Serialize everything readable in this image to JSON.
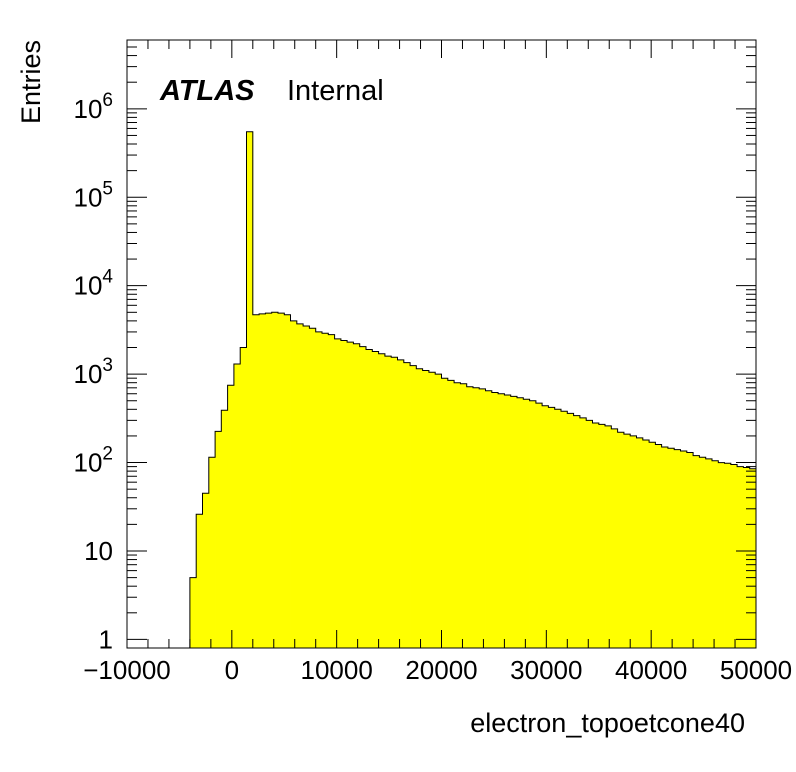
{
  "chart_data": {
    "type": "histogram",
    "xlabel": "electron_topoetcone40",
    "ylabel": "Entries",
    "label": {
      "experiment": "ATLAS",
      "status": "Internal"
    },
    "xlim": [
      -10000,
      50000
    ],
    "ylim": [
      0.8,
      6000000
    ],
    "yscale": "log",
    "x_ticks": [
      -10000,
      0,
      10000,
      20000,
      30000,
      40000,
      50000
    ],
    "x_tick_labels": [
      "−10000",
      "0",
      "10000",
      "20000",
      "30000",
      "40000",
      "50000"
    ],
    "y_ticks": [
      1,
      10,
      100,
      1000,
      10000,
      100000,
      1000000
    ],
    "y_tick_labels": [
      {
        "base": "1",
        "exp": ""
      },
      {
        "base": "10",
        "exp": ""
      },
      {
        "base": "10",
        "exp": "2"
      },
      {
        "base": "10",
        "exp": "3"
      },
      {
        "base": "10",
        "exp": "4"
      },
      {
        "base": "10",
        "exp": "5"
      },
      {
        "base": "10",
        "exp": "6"
      }
    ],
    "fill_color": "#ffff00",
    "line_color": "#000000",
    "bin_edges_start": -10000,
    "bin_width": 600,
    "counts": [
      0,
      0,
      0,
      0,
      0,
      0,
      0,
      0,
      0,
      0,
      5,
      26,
      45,
      115,
      225,
      390,
      750,
      1300,
      2000,
      550000,
      4700,
      4800,
      4900,
      5000,
      4900,
      4700,
      4000,
      3700,
      3500,
      3300,
      3000,
      2900,
      2800,
      2500,
      2400,
      2300,
      2200,
      2050,
      1900,
      1800,
      1700,
      1600,
      1550,
      1450,
      1350,
      1250,
      1150,
      1100,
      1050,
      1000,
      900,
      850,
      800,
      780,
      720,
      700,
      680,
      650,
      620,
      600,
      580,
      560,
      540,
      520,
      500,
      470,
      440,
      420,
      400,
      380,
      360,
      340,
      320,
      300,
      280,
      270,
      260,
      240,
      220,
      210,
      200,
      190,
      180,
      170,
      160,
      150,
      145,
      140,
      135,
      130,
      120,
      115,
      110,
      105,
      100,
      98,
      95,
      90,
      88,
      85
    ]
  }
}
